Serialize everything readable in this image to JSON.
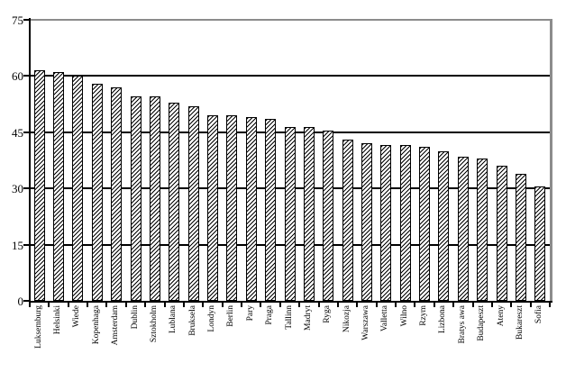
{
  "chart_data": {
    "type": "bar",
    "title": "",
    "xlabel": "",
    "ylabel": "",
    "categories": [
      "Luksemburg",
      "Helsinki",
      "Wiede",
      "Kopenhaga",
      "Amsterdam",
      "Dublin",
      "Sztokholm",
      "Lublana",
      "Bruksela",
      "Londyn",
      "Berlin",
      "Pary",
      "Praga",
      "Tallinn",
      "Madryt",
      "Ryga",
      "Nikozja",
      "Warszawa",
      "Valletta",
      "Wilno",
      "Rzym",
      "Lizbona",
      "Bratys awa",
      "Budapeszt",
      "Ateny",
      "Bukareszt",
      "Sofia"
    ],
    "values": [
      61.5,
      61,
      60,
      58,
      57,
      54.5,
      54.5,
      53,
      52,
      49.5,
      49.5,
      49,
      48.5,
      46.5,
      46.5,
      45.5,
      43,
      42,
      41.5,
      41.5,
      41,
      40,
      38.5,
      38,
      36,
      34,
      30.5
    ],
    "ylim": [
      0,
      75
    ],
    "y_ticks": [
      0,
      15,
      30,
      45,
      60,
      75
    ],
    "grid": "horizontal black gridlines at each y tick",
    "legend": "none",
    "x_label_rotation": "90 degrees, reading bottom to top",
    "bar_style": "white bars with black border and black diagonal hatch pattern",
    "colors": {
      "bar_border": "#000000",
      "bar_hatch": "#000000",
      "bar_background": "#ffffff",
      "gridline": "#000000",
      "axis": "#000000",
      "plot_frame": "#8c8c8c",
      "background": "#ffffff",
      "text": "#000000"
    }
  }
}
